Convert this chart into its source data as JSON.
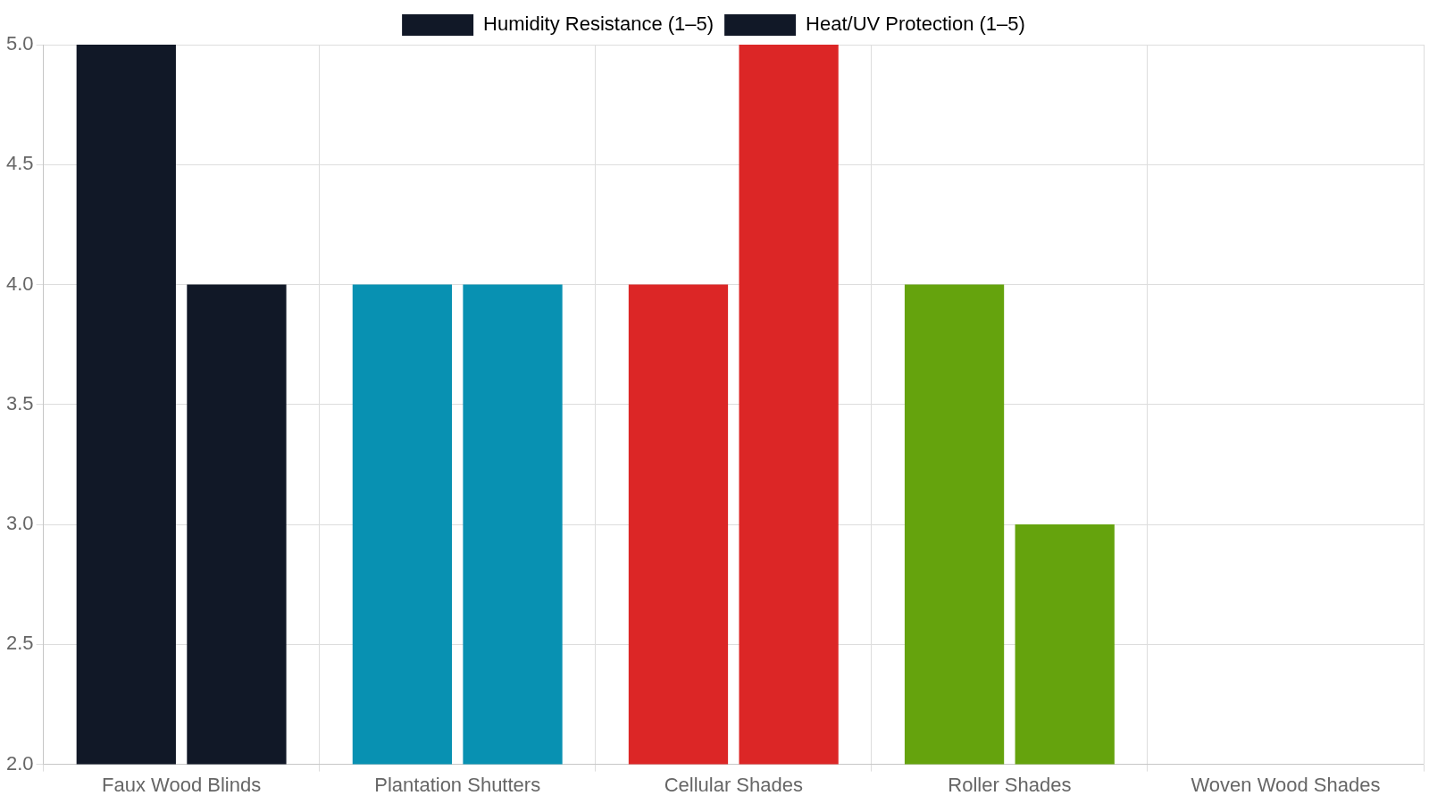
{
  "chart_data": {
    "type": "bar",
    "categories": [
      "Faux Wood Blinds",
      "Plantation Shutters",
      "Cellular Shades",
      "Roller Shades",
      "Woven Wood Shades"
    ],
    "series": [
      {
        "name": "Humidity Resistance (1–5)",
        "color": "#111827",
        "colors": [
          "#111827",
          "#0891b2",
          "#dc2626",
          "#65a30d",
          null
        ],
        "values": [
          5,
          4,
          4,
          4,
          null
        ]
      },
      {
        "name": "Heat/UV Protection (1–5)",
        "color": "#111827",
        "colors": [
          "#111827",
          "#0891b2",
          "#dc2626",
          "#65a30d",
          null
        ],
        "values": [
          4,
          4,
          5,
          3,
          null
        ]
      }
    ],
    "ylim": [
      2,
      5
    ],
    "yticks": [
      {
        "value": 2,
        "label": "2.0"
      },
      {
        "value": 2.5,
        "label": "2.5"
      },
      {
        "value": 3,
        "label": "3.0"
      },
      {
        "value": 3.5,
        "label": "3.5"
      },
      {
        "value": 4,
        "label": "4.0"
      },
      {
        "value": 4.5,
        "label": "4.5"
      },
      {
        "value": 5,
        "label": "5.0"
      }
    ],
    "grid": true,
    "legend": "top"
  }
}
